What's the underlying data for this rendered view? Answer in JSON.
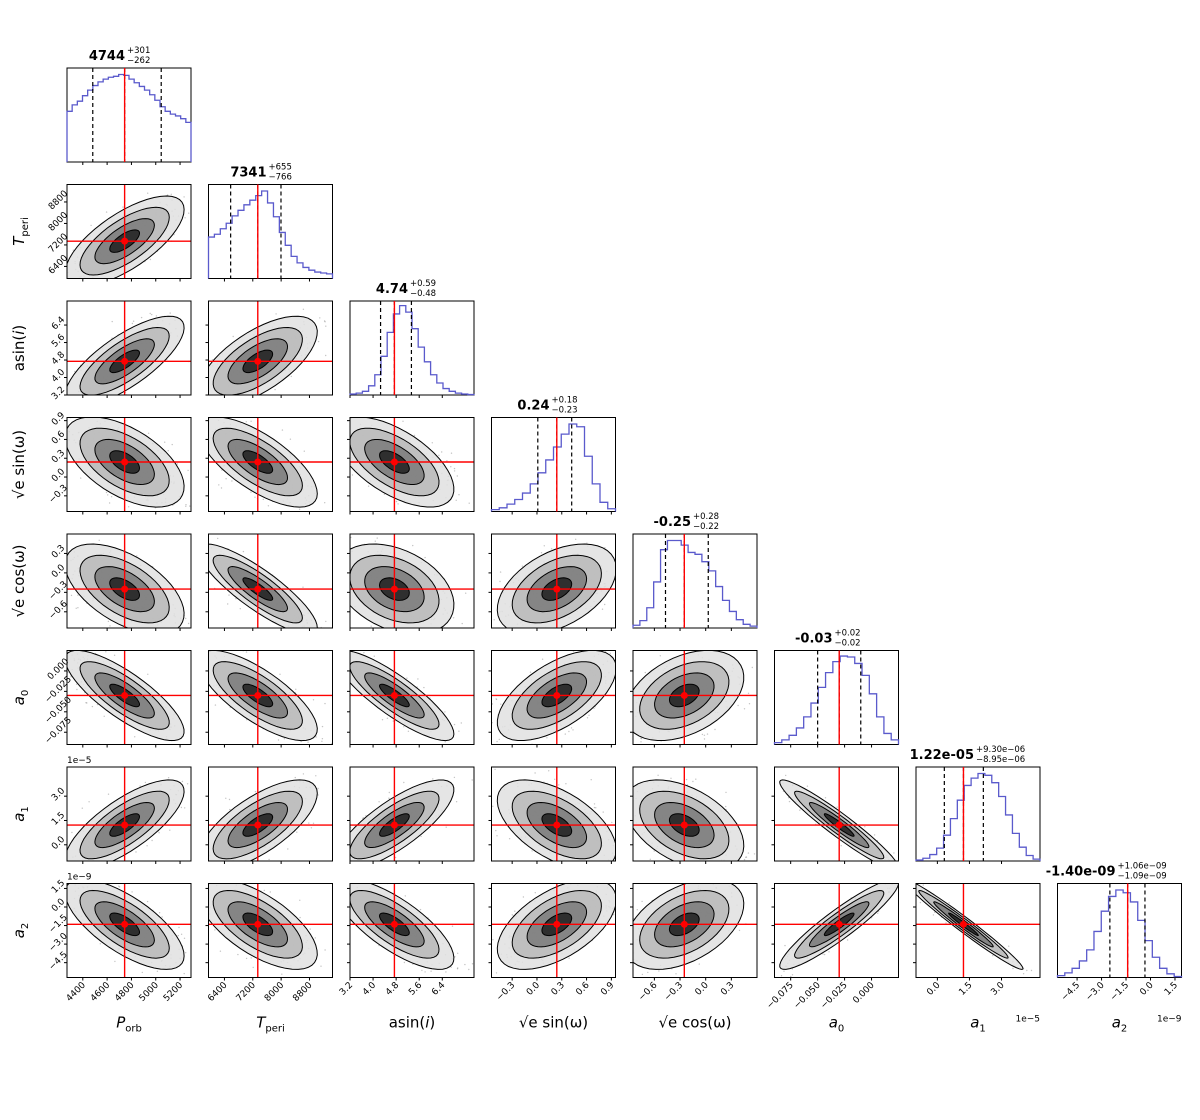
{
  "chart_data": {
    "type": "corner",
    "description_parameters": [
      "P_orb",
      "T_peri",
      "asin(i)",
      "sqrt(e)sin(omega)",
      "sqrt(e)cos(omega)",
      "a_0",
      "a_1",
      "a_2"
    ],
    "parameters": [
      {
        "key": "P",
        "label_main": "P",
        "label_sub": "orb",
        "range": [
          4270,
          5290
        ],
        "ticks": [
          4400,
          4600,
          4800,
          5000,
          5200
        ],
        "tick_labels": [
          "4400",
          "4600",
          "4800",
          "5000",
          "5200"
        ],
        "median": 4744,
        "plus": 301,
        "minus": 262,
        "title_value": "4744",
        "title_plus": "+301",
        "title_minus": "−262",
        "hist": [
          0.55,
          0.62,
          0.66,
          0.72,
          0.78,
          0.83,
          0.87,
          0.9,
          0.92,
          0.93,
          0.95,
          0.94,
          0.9,
          0.86,
          0.82,
          0.78,
          0.73,
          0.67,
          0.6,
          0.55,
          0.52,
          0.5,
          0.47,
          0.43
        ],
        "offset": ""
      },
      {
        "key": "T",
        "label_main": "T",
        "label_sub": "peri",
        "range": [
          5950,
          9450
        ],
        "ticks": [
          6400,
          7200,
          8000,
          8800
        ],
        "tick_labels": [
          "6400",
          "7200",
          "8000",
          "8800"
        ],
        "median": 7341,
        "plus": 655,
        "minus": 766,
        "title_value": "7341",
        "title_plus": "+655",
        "title_minus": "−766",
        "hist": [
          0.45,
          0.48,
          0.54,
          0.6,
          0.68,
          0.74,
          0.8,
          0.85,
          0.9,
          0.95,
          0.82,
          0.67,
          0.5,
          0.36,
          0.24,
          0.17,
          0.12,
          0.09,
          0.07,
          0.06,
          0.05
        ],
        "offset": ""
      },
      {
        "key": "A",
        "label_main": "asin(",
        "label_it": "i",
        "label_end": ")",
        "range": [
          3.2,
          7.5
        ],
        "ticks": [
          3.2,
          4.0,
          4.8,
          5.6,
          6.4
        ],
        "tick_labels": [
          "3.2",
          "4.0",
          "4.8",
          "5.6",
          "6.4"
        ],
        "median": 4.74,
        "plus": 0.59,
        "minus": 0.48,
        "title_value": "4.74",
        "title_plus": "+0.59",
        "title_minus": "−0.48",
        "hist": [
          0.01,
          0.02,
          0.04,
          0.1,
          0.22,
          0.42,
          0.68,
          0.88,
          0.97,
          0.9,
          0.72,
          0.52,
          0.36,
          0.22,
          0.13,
          0.07,
          0.04,
          0.02,
          0.01,
          0.005
        ],
        "offset": ""
      },
      {
        "key": "S",
        "label_main": "√e sin(ω)",
        "range": [
          -0.55,
          0.95
        ],
        "ticks": [
          -0.3,
          0.0,
          0.3,
          0.6,
          0.9
        ],
        "tick_labels": [
          "−0.3",
          "0.0",
          "0.3",
          "0.6",
          "0.9"
        ],
        "median": 0.24,
        "plus": 0.18,
        "minus": 0.23,
        "title_value": "0.24",
        "title_plus": "+0.18",
        "title_minus": "−0.23",
        "hist": [
          0.02,
          0.04,
          0.08,
          0.13,
          0.2,
          0.3,
          0.42,
          0.56,
          0.7,
          0.84,
          0.95,
          0.92,
          0.6,
          0.3,
          0.1,
          0.03
        ],
        "offset": ""
      },
      {
        "key": "C",
        "label_main": "√e cos(ω)",
        "range": [
          -0.85,
          0.6
        ],
        "ticks": [
          -0.6,
          -0.3,
          0.0,
          0.3
        ],
        "tick_labels": [
          "−0.6",
          "−0.3",
          "0.0",
          "0.3"
        ],
        "median": -0.25,
        "plus": 0.28,
        "minus": 0.22,
        "title_value": "-0.25",
        "title_plus": "+0.28",
        "title_minus": "−0.22",
        "hist": [
          0.03,
          0.08,
          0.22,
          0.5,
          0.85,
          0.95,
          0.95,
          0.9,
          0.82,
          0.8,
          0.72,
          0.62,
          0.45,
          0.3,
          0.18,
          0.09,
          0.04,
          0.02
        ],
        "offset": ""
      },
      {
        "key": "A0",
        "label_main": "a",
        "label_sub": "0",
        "range": [
          -0.09,
          0.025
        ],
        "ticks": [
          -0.075,
          -0.05,
          -0.025,
          0.0
        ],
        "tick_labels": [
          "−0.075",
          "−0.050",
          "−0.025",
          "0.000"
        ],
        "median": -0.03,
        "plus": 0.02,
        "minus": 0.02,
        "title_value": "-0.03",
        "title_plus": "+0.02",
        "title_minus": "−0.02",
        "hist": [
          0.02,
          0.05,
          0.1,
          0.18,
          0.3,
          0.45,
          0.62,
          0.78,
          0.9,
          0.96,
          0.95,
          0.88,
          0.75,
          0.55,
          0.3,
          0.12,
          0.05
        ],
        "offset": ""
      },
      {
        "key": "A1",
        "label_main": "a",
        "label_sub": "1",
        "range": [
          -1e-05,
          4.8e-05
        ],
        "ticks": [
          0.0,
          1.5e-05,
          3e-05
        ],
        "tick_labels": [
          "0.0",
          "1.5",
          "3.0"
        ],
        "median": 1.22e-05,
        "plus": 9.3e-06,
        "minus": 8.95e-06,
        "title_value": "1.22e-05",
        "title_plus": "+9.30e−06",
        "title_minus": "−8.95e−06",
        "hist": [
          0.01,
          0.03,
          0.07,
          0.14,
          0.28,
          0.46,
          0.66,
          0.82,
          0.9,
          0.95,
          0.93,
          0.85,
          0.7,
          0.5,
          0.3,
          0.15,
          0.06,
          0.02
        ],
        "offset": "1e−5"
      },
      {
        "key": "A2",
        "label_main": "a",
        "label_sub": "2",
        "range": [
          -5.7e-09,
          1.9e-09
        ],
        "ticks": [
          -4.5e-09,
          -3e-09,
          -1.5e-09,
          0.0,
          1.5e-09
        ],
        "tick_labels": [
          "−4.5",
          "−3.0",
          "−1.5",
          "0.0",
          "1.5"
        ],
        "median": -1.4e-09,
        "plus": 1.06e-09,
        "minus": 1.09e-09,
        "title_value": "-1.40e-09",
        "title_plus": "+1.06e−09",
        "title_minus": "−1.09e−09",
        "hist": [
          0.02,
          0.05,
          0.1,
          0.18,
          0.3,
          0.5,
          0.72,
          0.88,
          0.95,
          0.92,
          0.82,
          0.62,
          0.4,
          0.22,
          0.1,
          0.04,
          0.01
        ],
        "offset": "1e−9"
      }
    ],
    "correlations": [
      {
        "row": 1,
        "col": 0,
        "r": 0.7
      },
      {
        "row": 2,
        "col": 0,
        "r": 0.75
      },
      {
        "row": 2,
        "col": 1,
        "r": 0.65
      },
      {
        "row": 3,
        "col": 0,
        "r": -0.55
      },
      {
        "row": 3,
        "col": 1,
        "r": -0.7
      },
      {
        "row": 3,
        "col": 2,
        "r": -0.6
      },
      {
        "row": 4,
        "col": 0,
        "r": -0.55
      },
      {
        "row": 4,
        "col": 1,
        "r": -0.85
      },
      {
        "row": 4,
        "col": 2,
        "r": -0.35
      },
      {
        "row": 4,
        "col": 3,
        "r": 0.45
      },
      {
        "row": 5,
        "col": 0,
        "r": -0.8
      },
      {
        "row": 5,
        "col": 1,
        "r": -0.75
      },
      {
        "row": 5,
        "col": 2,
        "r": -0.85
      },
      {
        "row": 5,
        "col": 3,
        "r": 0.6
      },
      {
        "row": 5,
        "col": 4,
        "r": 0.4
      },
      {
        "row": 6,
        "col": 0,
        "r": 0.75
      },
      {
        "row": 6,
        "col": 1,
        "r": 0.7
      },
      {
        "row": 6,
        "col": 2,
        "r": 0.78
      },
      {
        "row": 6,
        "col": 3,
        "r": -0.55
      },
      {
        "row": 6,
        "col": 4,
        "r": -0.45
      },
      {
        "row": 6,
        "col": 5,
        "r": -0.95
      },
      {
        "row": 7,
        "col": 0,
        "r": -0.7
      },
      {
        "row": 7,
        "col": 1,
        "r": -0.65
      },
      {
        "row": 7,
        "col": 2,
        "r": -0.75
      },
      {
        "row": 7,
        "col": 3,
        "r": 0.55
      },
      {
        "row": 7,
        "col": 4,
        "r": 0.45
      },
      {
        "row": 7,
        "col": 5,
        "r": 0.92
      },
      {
        "row": 7,
        "col": 6,
        "r": -0.98
      }
    ],
    "colors": {
      "truth_line": "#ff0000",
      "hist_line": "#5a5acc",
      "quantile_line": "#000000",
      "density": "#000000",
      "samples": "#555555"
    },
    "quantile_lines": "dashed at 16th, 50th, 84th percentiles",
    "truth_marker": "red crosshair with dot at median"
  }
}
